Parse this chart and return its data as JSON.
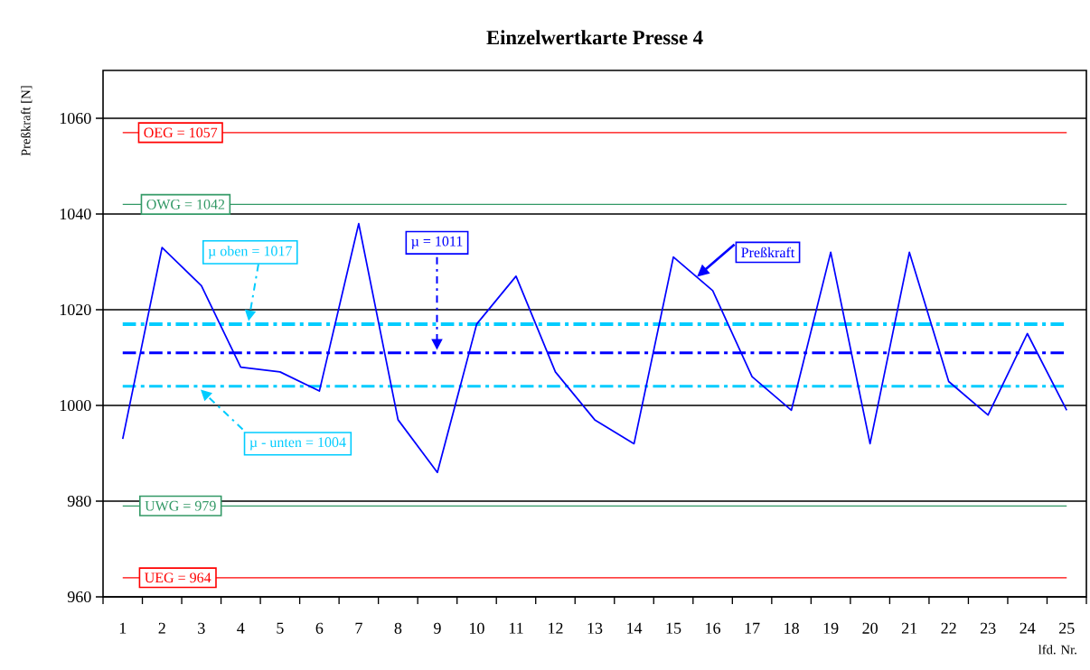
{
  "chart_data": {
    "type": "line",
    "title": "Einzelwertkarte Presse 4",
    "xlabel": "lfd. Nr.",
    "ylabel": "Preßkraft [N]",
    "categories": [
      "1",
      "2",
      "3",
      "4",
      "5",
      "6",
      "7",
      "8",
      "9",
      "10",
      "11",
      "12",
      "13",
      "14",
      "15",
      "16",
      "17",
      "18",
      "19",
      "20",
      "21",
      "22",
      "23",
      "24",
      "25"
    ],
    "series": [
      {
        "name": "Preßkraft",
        "color": "#0000ff",
        "values": [
          993,
          1033,
          1025,
          1008,
          1007,
          1003,
          1038,
          997,
          986,
          1017,
          1027,
          1007,
          997,
          992,
          1031,
          1024,
          1006,
          999,
          1032,
          992,
          1032,
          1005,
          998,
          1015,
          999
        ]
      }
    ],
    "ylim": [
      960,
      1070
    ],
    "yticks": [
      960,
      980,
      1000,
      1020,
      1040,
      1060
    ],
    "grid": "y",
    "marker": "none",
    "line_style": "solid",
    "ref_lines": [
      {
        "axis": "y",
        "value": 1057,
        "label": "OEG = 1057",
        "color": "#ff0000",
        "line_style": "solid"
      },
      {
        "axis": "y",
        "value": 1042,
        "label": "OWG = 1042",
        "color": "#339966",
        "line_style": "solid"
      },
      {
        "axis": "y",
        "value": 1017,
        "label": "µ oben = 1017",
        "color": "#00ccff",
        "line_style": "dashdot"
      },
      {
        "axis": "y",
        "value": 1011,
        "label": "µ = 1011",
        "color": "#0000ff",
        "line_style": "dashdot"
      },
      {
        "axis": "y",
        "value": 1004,
        "label": "µ - unten = 1004",
        "color": "#00ccff",
        "line_style": "dashdot"
      },
      {
        "axis": "y",
        "value": 979,
        "label": "UWG = 979",
        "color": "#339966",
        "line_style": "solid"
      },
      {
        "axis": "y",
        "value": 964,
        "label": "UEG = 964",
        "color": "#ff0000",
        "line_style": "solid"
      }
    ]
  }
}
